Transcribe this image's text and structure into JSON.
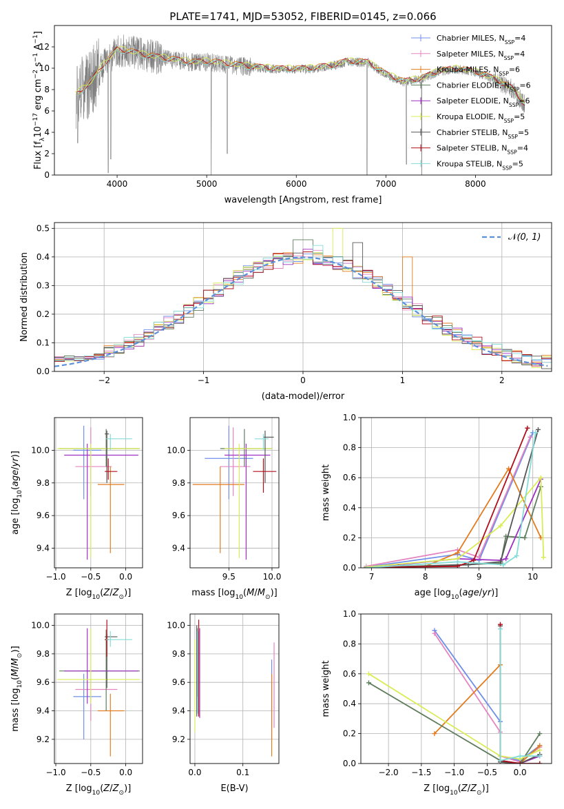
{
  "colors": {
    "series": [
      "#6f8ee8",
      "#e485c0",
      "#e37b1f",
      "#5e7d5c",
      "#9d2fc2",
      "#d9ec55",
      "#555555",
      "#b00e1a",
      "#83dbd8"
    ],
    "spectrum": "#808080",
    "normal_curve": "#5b8fd9"
  },
  "series_names": [
    "Chabrier MILES, N_SSP=4",
    "Salpeter MILES, N_SSP=4",
    "Kroupa MILES, N_SSP=6",
    "Chabrier ELODIE, N_SSP=6",
    "Salpeter ELODIE, N_SSP=6",
    "Kroupa ELODIE, N_SSP=5",
    "Chabrier STELIB, N_SSP=5",
    "Salpeter STELIB, N_SSP=4",
    "Kroupa STELIB, N_SSP=5"
  ],
  "chart_data": [
    {
      "id": "spectrum",
      "type": "line",
      "title": "PLATE=1741, MJD=53052, FIBERID=0145, z=0.066",
      "xlabel": "wavelength [Angstrom, rest frame]",
      "ylabel": "Flux [f_λ10^-17 erg cm^-2 s^-1 A^-1]",
      "xlim": [
        3300,
        8850
      ],
      "ylim": [
        0,
        14
      ],
      "xticks": [
        4000,
        5000,
        6000,
        7000,
        8000
      ],
      "yticks": [
        0,
        2,
        4,
        6,
        8,
        10,
        12
      ],
      "grid": false,
      "legend": "top-right",
      "continuum_points": [
        [
          3540,
          7.5
        ],
        [
          3700,
          8.6
        ],
        [
          3850,
          10.3
        ],
        [
          4000,
          11.7
        ],
        [
          4100,
          11.6
        ],
        [
          4300,
          11.2
        ],
        [
          4600,
          10.8
        ],
        [
          4860,
          10.5
        ],
        [
          5000,
          10.6
        ],
        [
          5200,
          10.4
        ],
        [
          5500,
          10.1
        ],
        [
          5800,
          9.9
        ],
        [
          6100,
          9.9
        ],
        [
          6400,
          10.2
        ],
        [
          6563,
          10.6
        ],
        [
          6800,
          10.5
        ],
        [
          7000,
          9.4
        ],
        [
          7200,
          8.7
        ],
        [
          7400,
          9.0
        ],
        [
          7600,
          9.7
        ],
        [
          7800,
          9.9
        ],
        [
          8000,
          9.6
        ],
        [
          8200,
          9.0
        ],
        [
          8400,
          8.1
        ],
        [
          8550,
          6.6
        ]
      ],
      "absorption_lines": [
        [
          3560,
          3.0
        ],
        [
          3900,
          0.2
        ],
        [
          3930,
          1.5
        ],
        [
          5050,
          0.0
        ],
        [
          5230,
          2.0
        ],
        [
          6790,
          0.0
        ],
        [
          7230,
          1.0
        ],
        [
          7400,
          0.0
        ]
      ]
    },
    {
      "id": "residuals",
      "type": "histogram",
      "xlabel": "(data-model)/error",
      "ylabel": "Normed distribution",
      "xlim": [
        -2.5,
        2.5
      ],
      "ylim": [
        0,
        0.52
      ],
      "xticks": [
        -2,
        -1,
        0,
        1,
        2
      ],
      "yticks": [
        0.0,
        0.1,
        0.2,
        0.3,
        0.4,
        0.5
      ],
      "grid": true,
      "bin_width": 0.1,
      "legend": "top-right",
      "legend_label": "N(0,1)",
      "highlights": [
        [
          0.0,
          0.46,
          3
        ],
        [
          0.35,
          0.5,
          5
        ],
        [
          1.05,
          0.4,
          2
        ],
        [
          -0.45,
          0.38,
          4
        ],
        [
          0.15,
          0.44,
          8
        ],
        [
          -0.25,
          0.36,
          1
        ],
        [
          0.55,
          0.45,
          6
        ]
      ]
    },
    {
      "id": "age_vs_Z",
      "type": "errorbar",
      "xlabel": "Z [log10(Z/Z_sun)]",
      "ylabel": "age [log10(age/yr)]",
      "xlim": [
        -1.02,
        0.24
      ],
      "ylim": [
        9.28,
        10.2
      ],
      "xticks": [
        -1.0,
        -0.5,
        0.0
      ],
      "yticks": [
        9.4,
        9.6,
        9.8,
        10.0
      ],
      "grid": true,
      "points": [
        {
          "s": 0,
          "x": -0.6,
          "xl": -0.75,
          "xh": -0.35,
          "y": 10.0,
          "yl": 9.7,
          "yh": 10.15
        },
        {
          "s": 1,
          "x": -0.5,
          "xl": -0.72,
          "xh": -0.2,
          "y": 9.9,
          "yl": 9.72,
          "yh": 10.14
        },
        {
          "s": 2,
          "x": -0.22,
          "xl": -0.4,
          "xh": -0.02,
          "y": 9.79,
          "yl": 9.37,
          "yh": 9.9
        },
        {
          "s": 3,
          "x": -0.28,
          "xl": -0.95,
          "xh": 0.2,
          "y": 10.01,
          "yl": 9.9,
          "yh": 10.13
        },
        {
          "s": 4,
          "x": -0.55,
          "xl": -0.88,
          "xh": 0.18,
          "y": 9.97,
          "yl": 9.33,
          "yh": 10.04
        },
        {
          "s": 5,
          "x": -0.5,
          "xl": -0.98,
          "xh": 0.2,
          "y": 10.01,
          "yl": 9.34,
          "yh": 10.04
        },
        {
          "s": 6,
          "x": -0.27,
          "xl": -0.3,
          "xh": -0.24,
          "y": 10.1,
          "yl": 9.8,
          "yh": 10.12
        },
        {
          "s": 7,
          "x": -0.25,
          "xl": -0.3,
          "xh": -0.12,
          "y": 9.87,
          "yl": 9.82,
          "yh": 9.95
        },
        {
          "s": 8,
          "x": -0.22,
          "xl": -0.28,
          "xh": 0.09,
          "y": 10.07,
          "yl": 10.0,
          "yh": 10.1
        }
      ]
    },
    {
      "id": "age_vs_mass",
      "type": "errorbar",
      "xlabel": "mass [log10(M/M_sun)]",
      "ylabel": "",
      "xlim": [
        9.05,
        10.08
      ],
      "ylim": [
        9.28,
        10.2
      ],
      "xticks": [
        9.5,
        10.0
      ],
      "yticks": [
        9.4,
        9.6,
        9.8,
        10.0
      ],
      "grid": true,
      "points": [
        {
          "s": 0,
          "x": 9.5,
          "xl": 9.22,
          "xh": 9.78,
          "y": 9.95,
          "yl": 9.7,
          "yh": 10.15
        },
        {
          "s": 1,
          "x": 9.55,
          "xl": 9.4,
          "xh": 9.75,
          "y": 9.9,
          "yl": 9.72,
          "yh": 10.14
        },
        {
          "s": 2,
          "x": 9.4,
          "xl": 9.08,
          "xh": 9.68,
          "y": 9.79,
          "yl": 9.37,
          "yh": 9.9
        },
        {
          "s": 3,
          "x": 9.68,
          "xl": 9.4,
          "xh": 10.0,
          "y": 10.01,
          "yl": 9.9,
          "yh": 10.13
        },
        {
          "s": 4,
          "x": 9.7,
          "xl": 9.45,
          "xh": 9.98,
          "y": 9.97,
          "yl": 9.33,
          "yh": 10.04
        },
        {
          "s": 5,
          "x": 9.62,
          "xl": 9.45,
          "xh": 10.0,
          "y": 10.01,
          "yl": 9.34,
          "yh": 10.04
        },
        {
          "s": 6,
          "x": 9.92,
          "xl": 9.9,
          "xh": 10.02,
          "y": 10.08,
          "yl": 9.8,
          "yh": 10.12
        },
        {
          "s": 7,
          "x": 9.9,
          "xl": 9.78,
          "xh": 10.05,
          "y": 9.87,
          "yl": 9.74,
          "yh": 9.95
        },
        {
          "s": 8,
          "x": 9.9,
          "xl": 9.8,
          "xh": 9.96,
          "y": 10.07,
          "yl": 10.0,
          "yh": 10.1
        }
      ]
    },
    {
      "id": "weight_vs_age",
      "type": "line",
      "xlabel": "age [log10(age/yr)]",
      "ylabel": "mass weight",
      "xlim": [
        6.8,
        10.35
      ],
      "ylim": [
        0,
        1.0
      ],
      "xticks": [
        7,
        8,
        9,
        10
      ],
      "yticks": [
        0.0,
        0.2,
        0.4,
        0.6,
        0.8,
        1.0
      ],
      "grid": true,
      "series": [
        {
          "s": 0,
          "points": [
            [
              6.9,
              0.005
            ],
            [
              8.6,
              0.09
            ],
            [
              9.0,
              0.05
            ],
            [
              10.0,
              0.9
            ]
          ]
        },
        {
          "s": 1,
          "points": [
            [
              6.9,
              0.01
            ],
            [
              8.6,
              0.12
            ],
            [
              9.0,
              0.07
            ],
            [
              9.95,
              0.87
            ]
          ]
        },
        {
          "s": 2,
          "points": [
            [
              6.9,
              0.0
            ],
            [
              8.0,
              0.01
            ],
            [
              8.6,
              0.1
            ],
            [
              9.55,
              0.66
            ],
            [
              10.15,
              0.2
            ]
          ]
        },
        {
          "s": 3,
          "points": [
            [
              6.9,
              0.0
            ],
            [
              8.6,
              0.02
            ],
            [
              9.4,
              0.03
            ],
            [
              9.5,
              0.21
            ],
            [
              9.85,
              0.2
            ],
            [
              10.15,
              0.54
            ]
          ]
        },
        {
          "s": 4,
          "points": [
            [
              6.9,
              0.0
            ],
            [
              8.6,
              0.06
            ],
            [
              9.4,
              0.05
            ],
            [
              9.5,
              0.06
            ],
            [
              10.15,
              0.59
            ]
          ]
        },
        {
          "s": 5,
          "points": [
            [
              6.9,
              0.005
            ],
            [
              8.6,
              0.06
            ],
            [
              9.4,
              0.28
            ],
            [
              10.15,
              0.6
            ],
            [
              10.2,
              0.07
            ]
          ]
        },
        {
          "s": 6,
          "points": [
            [
              6.9,
              0.0
            ],
            [
              8.8,
              0.02
            ],
            [
              9.4,
              0.04
            ],
            [
              10.1,
              0.92
            ]
          ]
        },
        {
          "s": 7,
          "points": [
            [
              6.9,
              0.0
            ],
            [
              7.5,
              0.005
            ],
            [
              8.6,
              0.01
            ],
            [
              8.9,
              0.05
            ],
            [
              9.9,
              0.93
            ]
          ]
        },
        {
          "s": 8,
          "points": [
            [
              6.9,
              0.0
            ],
            [
              8.6,
              0.04
            ],
            [
              9.45,
              0.02
            ],
            [
              9.7,
              0.08
            ],
            [
              10.05,
              0.9
            ]
          ]
        }
      ]
    },
    {
      "id": "mass_vs_Z",
      "type": "errorbar",
      "xlabel": "Z [log10(Z/Z_sun)]",
      "ylabel": "mass [log10(M/M_sun)]",
      "xlim": [
        -1.02,
        0.24
      ],
      "ylim": [
        9.03,
        10.08
      ],
      "xticks": [
        -1.0,
        -0.5,
        0.0
      ],
      "yticks": [
        9.2,
        9.4,
        9.6,
        9.8,
        10.0
      ],
      "grid": true,
      "points": [
        {
          "s": 0,
          "x": -0.6,
          "xl": -0.75,
          "xh": -0.35,
          "y": 9.5,
          "yl": 9.2,
          "yh": 9.66
        },
        {
          "s": 1,
          "x": -0.5,
          "xl": -0.72,
          "xh": -0.12,
          "y": 9.55,
          "yl": 9.33,
          "yh": 9.62
        },
        {
          "s": 2,
          "x": -0.22,
          "xl": -0.4,
          "xh": -0.02,
          "y": 9.4,
          "yl": 9.08,
          "yh": 9.52
        },
        {
          "s": 3,
          "x": -0.28,
          "xl": -0.95,
          "xh": 0.2,
          "y": 9.68,
          "yl": 9.4,
          "yh": 9.97
        },
        {
          "s": 4,
          "x": -0.55,
          "xl": -0.88,
          "xh": 0.18,
          "y": 9.68,
          "yl": 9.45,
          "yh": 9.98
        },
        {
          "s": 5,
          "x": -0.5,
          "xl": -0.98,
          "xh": 0.2,
          "y": 9.62,
          "yl": 9.45,
          "yh": 9.98
        },
        {
          "s": 6,
          "x": -0.27,
          "xl": -0.3,
          "xh": -0.12,
          "y": 9.92,
          "yl": 9.56,
          "yh": 9.94
        },
        {
          "s": 7,
          "x": -0.27,
          "xl": -0.3,
          "xh": -0.24,
          "y": 9.9,
          "yl": 9.78,
          "yh": 10.04
        },
        {
          "s": 8,
          "x": -0.22,
          "xl": -0.28,
          "xh": 0.09,
          "y": 9.9,
          "yl": 9.85,
          "yh": 9.96
        }
      ]
    },
    {
      "id": "mass_vs_EBV",
      "type": "errorbar",
      "xlabel": "E(B-V)",
      "ylabel": "",
      "xlim": [
        -0.01,
        0.175
      ],
      "ylim": [
        9.03,
        10.08
      ],
      "xticks": [
        0.0,
        0.1
      ],
      "yticks": [
        9.2,
        9.4,
        9.6,
        9.8,
        10.0
      ],
      "grid": true,
      "points": [
        {
          "s": 0,
          "x": 0.16,
          "xl": 0.16,
          "xh": 0.16,
          "y": 9.5,
          "yl": 9.2,
          "yh": 9.76
        },
        {
          "s": 1,
          "x": 0.165,
          "xl": 0.165,
          "xh": 0.165,
          "y": 9.55,
          "yl": 9.28,
          "yh": 9.88
        },
        {
          "s": 2,
          "x": 0.16,
          "xl": 0.16,
          "xh": 0.16,
          "y": 9.4,
          "yl": 9.08,
          "yh": 9.66
        },
        {
          "s": 3,
          "x": 0.005,
          "xl": 0.005,
          "xh": 0.005,
          "y": 9.68,
          "yl": 9.5,
          "yh": 9.98
        },
        {
          "s": 4,
          "x": 0.01,
          "xl": 0.01,
          "xh": 0.01,
          "y": 9.68,
          "yl": 9.35,
          "yh": 9.98
        },
        {
          "s": 5,
          "x": 0.0,
          "xl": 0.0,
          "xh": 0.0,
          "y": 9.62,
          "yl": 9.25,
          "yh": 9.9
        },
        {
          "s": 6,
          "x": 0.004,
          "xl": 0.004,
          "xh": 0.004,
          "y": 9.92,
          "yl": 9.36,
          "yh": 10.0
        },
        {
          "s": 7,
          "x": 0.008,
          "xl": 0.008,
          "xh": 0.008,
          "y": 9.9,
          "yl": 9.36,
          "yh": 10.04
        },
        {
          "s": 8,
          "x": 0.006,
          "xl": 0.006,
          "xh": 0.006,
          "y": 9.9,
          "yl": 9.38,
          "yh": 9.96
        }
      ]
    },
    {
      "id": "weight_vs_Z",
      "type": "line",
      "xlabel": "Z [log10(Z/Z_sun)]",
      "ylabel": "mass weight",
      "xlim": [
        -2.42,
        0.48
      ],
      "ylim": [
        0,
        1.0
      ],
      "xticks": [
        -2.0,
        -1.5,
        -1.0,
        -0.5,
        0.0
      ],
      "yticks": [
        0.0,
        0.2,
        0.4,
        0.6,
        0.8,
        1.0
      ],
      "grid": true,
      "series": [
        {
          "s": 0,
          "points": [
            [
              -1.3,
              0.89
            ],
            [
              -0.3,
              0.28
            ],
            [
              -0.3,
              0.05
            ],
            [
              0.0,
              0.02
            ],
            [
              0.3,
              0.12
            ]
          ]
        },
        {
          "s": 1,
          "points": [
            [
              -1.3,
              0.87
            ],
            [
              -0.3,
              0.21
            ],
            [
              -0.3,
              0.05
            ],
            [
              0.0,
              0.01
            ],
            [
              0.3,
              0.11
            ]
          ]
        },
        {
          "s": 2,
          "points": [
            [
              -1.3,
              0.2
            ],
            [
              -0.3,
              0.66
            ],
            [
              -0.3,
              0.01
            ],
            [
              0.0,
              0.0
            ],
            [
              0.3,
              0.12
            ]
          ]
        },
        {
          "s": 3,
          "points": [
            [
              -2.3,
              0.54
            ],
            [
              -0.3,
              0.02
            ],
            [
              0.0,
              0.0
            ],
            [
              0.3,
              0.2
            ]
          ]
        },
        {
          "s": 4,
          "points": [
            [
              -0.3,
              0.02
            ],
            [
              0.0,
              0.0
            ],
            [
              0.3,
              0.05
            ]
          ]
        },
        {
          "s": 5,
          "points": [
            [
              -2.3,
              0.6
            ],
            [
              -0.3,
              0.05
            ],
            [
              0.0,
              0.03
            ],
            [
              0.3,
              0.09
            ]
          ]
        },
        {
          "s": 6,
          "points": [
            [
              -0.3,
              0.92
            ],
            [
              -0.3,
              0.01
            ],
            [
              0.0,
              0.0
            ],
            [
              0.3,
              0.06
            ]
          ]
        },
        {
          "s": 7,
          "points": [
            [
              -0.3,
              0.93
            ],
            [
              -0.3,
              0.02
            ],
            [
              0.0,
              0.0
            ],
            [
              0.3,
              0.0
            ]
          ]
        },
        {
          "s": 8,
          "points": [
            [
              -0.3,
              0.9
            ],
            [
              -0.3,
              0.02
            ],
            [
              0.0,
              0.05
            ],
            [
              0.3,
              0.05
            ]
          ]
        }
      ]
    }
  ]
}
